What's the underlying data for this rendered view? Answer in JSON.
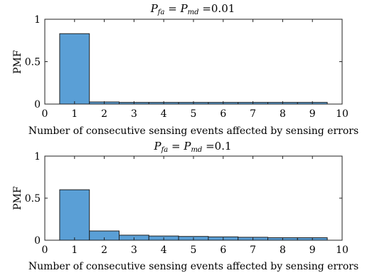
{
  "chart_data": [
    {
      "type": "bar",
      "title": "P_fa = P_md =0.01",
      "title_parts": {
        "p": "P",
        "sub1": "fa",
        "eq": " = ",
        "sub2": "md",
        "value": " =0.01"
      },
      "xlabel": "Number of consecutive sensing events affected by sensing errors",
      "ylabel": "PMF",
      "categories": [
        1,
        2,
        3,
        4,
        5,
        6,
        7,
        8,
        9
      ],
      "values": [
        0.83,
        0.025,
        0.02,
        0.02,
        0.02,
        0.02,
        0.02,
        0.02,
        0.02
      ],
      "xlim": [
        0,
        10
      ],
      "ylim": [
        0,
        1
      ],
      "xticks": [
        "0",
        "1",
        "2",
        "3",
        "4",
        "5",
        "6",
        "7",
        "8",
        "9",
        "10"
      ],
      "yticks": [
        "0",
        "0.5",
        "1"
      ],
      "bar_color": "#5a9fd6",
      "grid": false
    },
    {
      "type": "bar",
      "title": "P_fa = P_md =0.1",
      "title_parts": {
        "p": "P",
        "sub1": "fa",
        "eq": " = ",
        "sub2": "md",
        "value": " =0.1"
      },
      "xlabel": "Number of consecutive sensing events affected by sensing errors",
      "ylabel": "PMF",
      "categories": [
        1,
        2,
        3,
        4,
        5,
        6,
        7,
        8,
        9
      ],
      "values": [
        0.6,
        0.11,
        0.06,
        0.05,
        0.045,
        0.04,
        0.035,
        0.03,
        0.03
      ],
      "xlim": [
        0,
        10
      ],
      "ylim": [
        0,
        1
      ],
      "xticks": [
        "0",
        "1",
        "2",
        "3",
        "4",
        "5",
        "6",
        "7",
        "8",
        "9",
        "10"
      ],
      "yticks": [
        "0",
        "0.5",
        "1"
      ],
      "bar_color": "#5a9fd6",
      "grid": false
    }
  ]
}
